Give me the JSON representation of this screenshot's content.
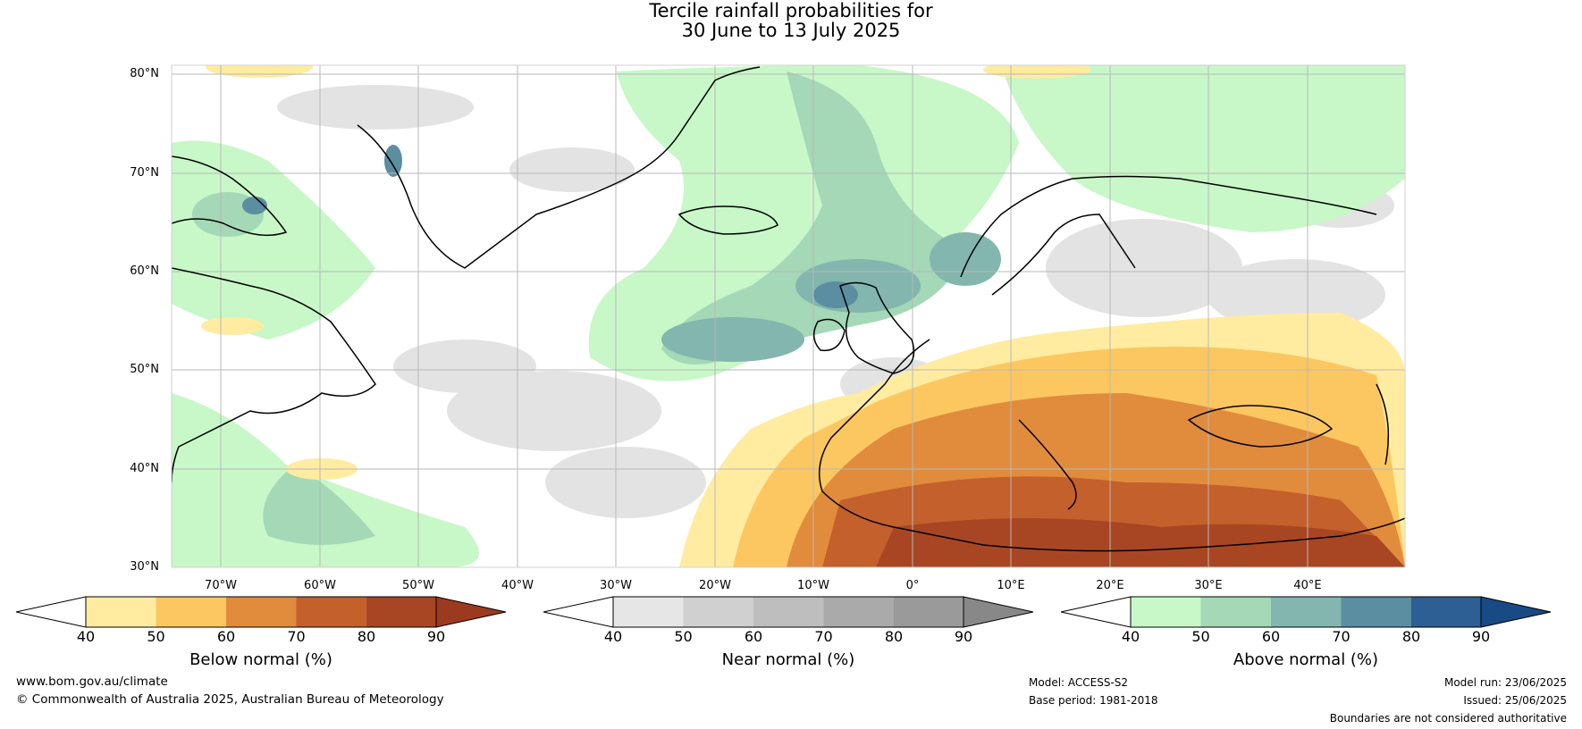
{
  "title": {
    "line1": "Tercile rainfall probabilities for",
    "line2": "30 June to 13 July 2025"
  },
  "map": {
    "lat_labels": [
      "80°N",
      "70°N",
      "60°N",
      "50°N",
      "40°N",
      "30°N"
    ],
    "lon_labels": [
      "70°W",
      "60°W",
      "50°W",
      "40°W",
      "30°W",
      "20°W",
      "10°W",
      "0°",
      "10°E",
      "20°E",
      "30°E",
      "40°E"
    ],
    "extent": {
      "lon_min": -75,
      "lon_max": 50,
      "lat_min": 30,
      "lat_max": 80
    }
  },
  "colorbars": [
    {
      "label": "Below normal (%)",
      "ticks": [
        "40",
        "50",
        "60",
        "70",
        "80",
        "90"
      ],
      "colors": [
        "#ffffff",
        "#ffeca0",
        "#fcc760",
        "#e08c3c",
        "#c4602c",
        "#a84624",
        "#9c3a20"
      ]
    },
    {
      "label": "Near normal (%)",
      "ticks": [
        "40",
        "50",
        "60",
        "70",
        "80",
        "90"
      ],
      "colors": [
        "#ffffff",
        "#e6e6e6",
        "#d0d0d0",
        "#bebebe",
        "#aaaaaa",
        "#9a9a9a",
        "#888888"
      ]
    },
    {
      "label": "Above normal (%)",
      "ticks": [
        "40",
        "50",
        "60",
        "70",
        "80",
        "90"
      ],
      "colors": [
        "#ffffff",
        "#c8f7c8",
        "#a4d8b6",
        "#82b6ae",
        "#5a8ea0",
        "#2d5e94",
        "#184a84"
      ]
    }
  ],
  "footer": {
    "website": "www.bom.gov.au/climate",
    "copyright": "© Commonwealth of Australia 2025, Australian Bureau of Meteorology",
    "model": "Model: ACCESS-S2",
    "base_period": "Base period: 1981-2018",
    "model_run": "Model run: 23/06/2025",
    "issued": "Issued: 25/06/2025",
    "disclaimer": "Boundaries are not considered authoritative"
  }
}
